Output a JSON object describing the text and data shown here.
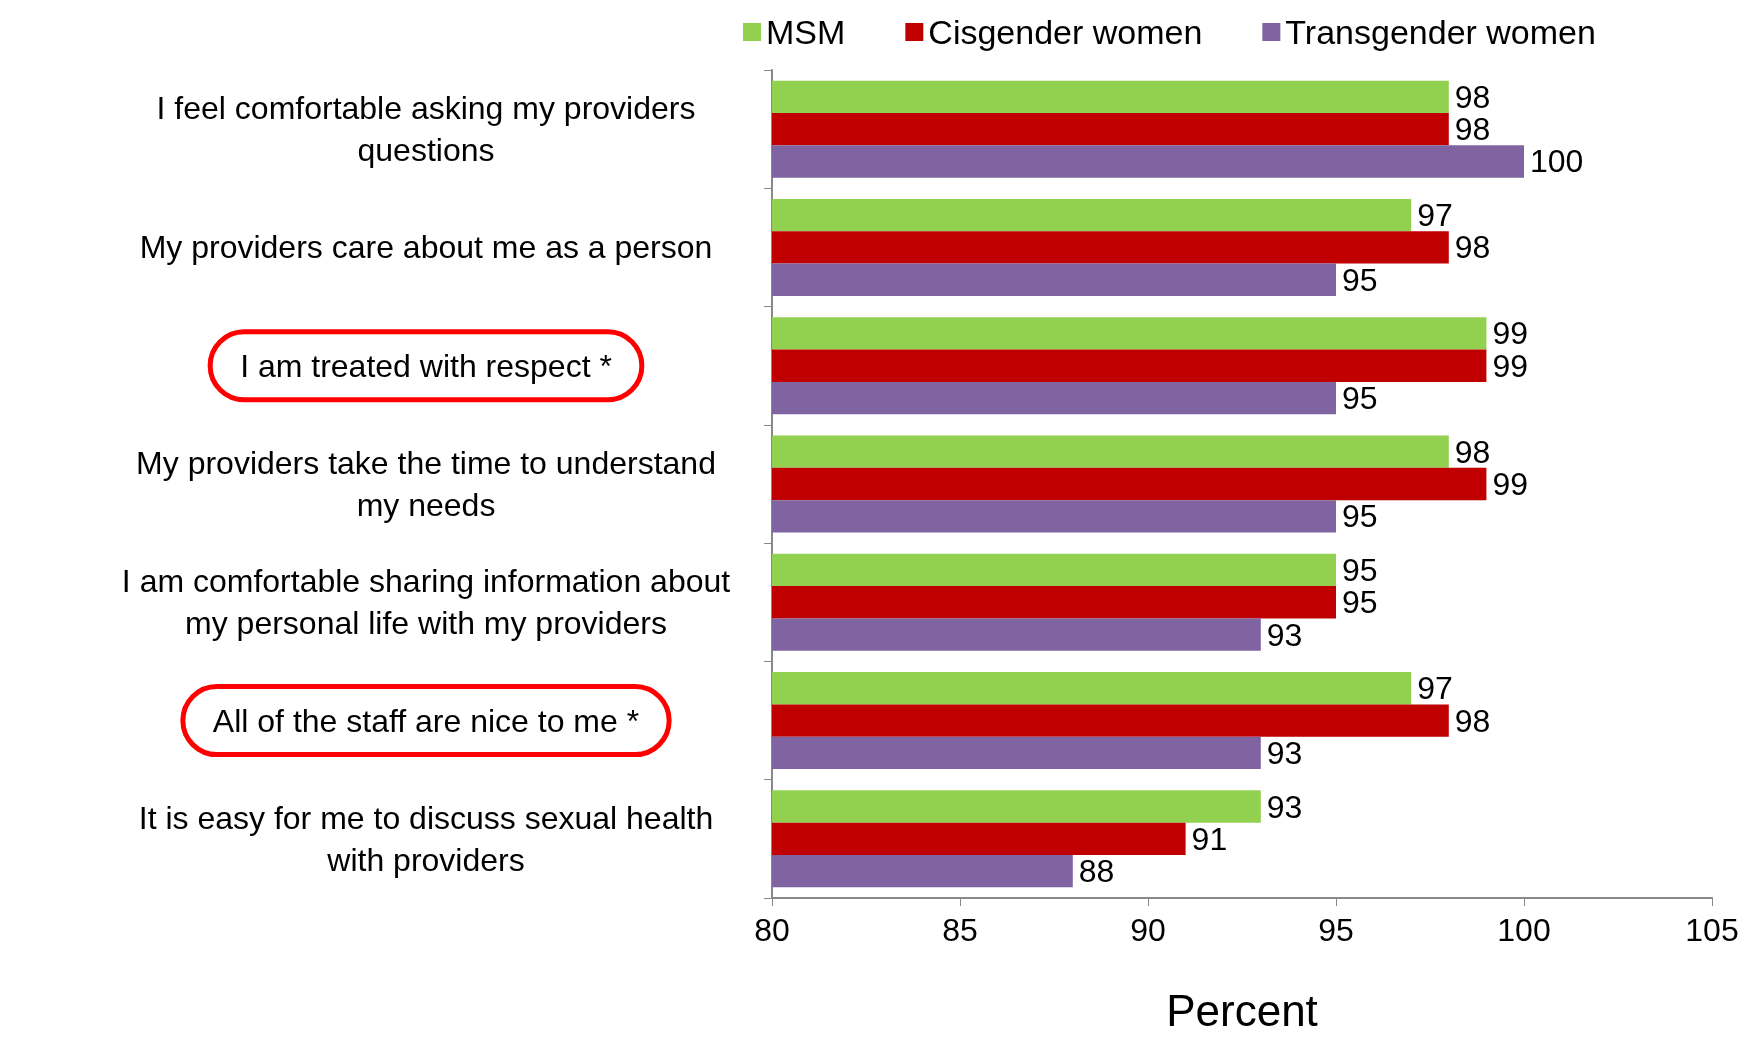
{
  "chart_data": {
    "type": "bar",
    "orientation": "horizontal",
    "xlabel": "Percent",
    "categories": [
      "I feel comfortable asking my providers\nquestions",
      "My providers care about me as a person",
      "I am treated with respect *",
      "My providers take the time to understand\nmy needs",
      "I am comfortable sharing information about\nmy personal life with my providers",
      "All of the staff are nice to me *",
      "It is easy for me to discuss sexual health\nwith providers"
    ],
    "series": [
      {
        "name": "MSM",
        "color": "#92d050",
        "values": [
          98,
          97,
          99,
          98,
          95,
          97,
          93
        ]
      },
      {
        "name": "Cisgender women",
        "color": "#c00000",
        "values": [
          98,
          98,
          99,
          99,
          95,
          98,
          91
        ]
      },
      {
        "name": "Transgender women",
        "color": "#8064a2",
        "values": [
          100,
          95,
          95,
          95,
          93,
          93,
          88
        ]
      }
    ],
    "xlim": [
      80,
      105
    ],
    "xticks": [
      80,
      85,
      90,
      95,
      100,
      105
    ],
    "data_labels": true,
    "legend": "top",
    "grid": false
  }
}
